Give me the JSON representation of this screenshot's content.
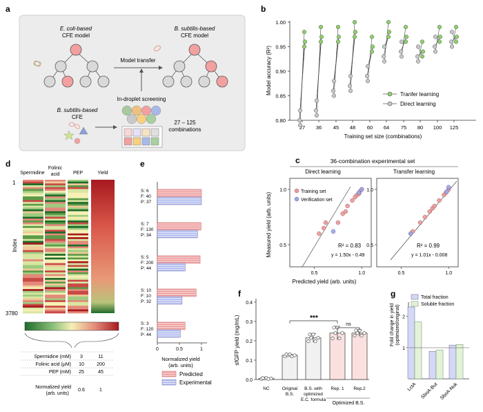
{
  "panel_labels": {
    "a": "a",
    "b": "b",
    "c": "c",
    "d": "d",
    "e": "e",
    "f": "f",
    "g": "g"
  },
  "panel_a": {
    "ecoli_model_line1": "E. coli-based",
    "ecoli_model_line2": "CFE model",
    "bsub_model_line1": "B. subtilis-based",
    "bsub_model_line2": "CFE model",
    "model_transfer": "Model transfer",
    "screening": "In-droplet screening",
    "bsub_cfe_line1": "B. subtilis-based",
    "bsub_cfe_line2": "CFE",
    "combinations_line1": "27 – 125",
    "combinations_line2": "combinations",
    "colors": {
      "box": "#ececec",
      "node_red": "#f2a0a0",
      "node_gray": "#d9d9d9"
    }
  },
  "panel_b": {
    "ylabel": "Model accuracy (R²)",
    "xlabel": "Training set size (combinations)",
    "yticks": [
      "0.80",
      "0.85",
      "0.90",
      "0.95",
      "1.00"
    ],
    "xticks": [
      "27",
      "36",
      "45",
      "48",
      "60",
      "64",
      "75",
      "80",
      "100",
      "125"
    ],
    "legend_transfer": "Tranfer learning",
    "legend_direct": "Direct learning",
    "colors": {
      "transfer": "#8fd16a",
      "direct": "#c8c8c8"
    }
  },
  "panel_c": {
    "title": "36-combination experimental set",
    "left_title": "Direct learning",
    "right_title": "Transfer learning",
    "ylabel": "Measured yield (arb. units)",
    "xlabel": "Predicted yield (arb. units)",
    "legend_training": "Training set",
    "legend_verification": "Verification set",
    "left_r2": "R² = 0.83",
    "left_eq": "y = 1.50x - 0.49",
    "right_r2": "R² = 0.99",
    "right_eq": "y = 1.01x - 0.008",
    "yticks": [
      "0.5",
      "1.0"
    ],
    "xticks": [
      "0.5",
      "1.0"
    ],
    "colors": {
      "training": "#e8989a",
      "verification": "#9aa8e8"
    }
  },
  "panel_d": {
    "col_spermidine": "Spermidine",
    "col_folinic_1": "Folinic",
    "col_folinic_2": "acid",
    "col_pep": "PEP",
    "col_yield": "Yield",
    "index_label": "Index",
    "index_top": "1",
    "index_bottom": "3780",
    "table": [
      {
        "label": "Spermidine (mM)",
        "low": "3",
        "high": "11"
      },
      {
        "label": "Folinic acid (μM)",
        "low": "10",
        "high": "200"
      },
      {
        "label": "PEP (mM)",
        "low": "25",
        "high": "45"
      }
    ],
    "yield_label_1": "Normalized yield",
    "yield_label_2": "(arb. units)",
    "yield_low": "0.6",
    "yield_high": "1"
  },
  "panel_e": {
    "groups": [
      {
        "s": "S: 6",
        "f": "F: 40",
        "p": "P: 37"
      },
      {
        "s": "S: 7",
        "f": "F: 130",
        "p": "P: 34"
      },
      {
        "s": "S: 5",
        "f": "F: 200",
        "p": "P: 44"
      },
      {
        "s": "S: 10",
        "f": "F: 10",
        "p": "P: 32"
      },
      {
        "s": "S: 3",
        "f": "F: 120",
        "p": "P: 44"
      }
    ],
    "xticks": [
      "0",
      "0.5",
      "1"
    ],
    "xlabel_1": "Normalized yield",
    "xlabel_2": "(arb. units)",
    "legend_predicted": "Predicted",
    "legend_experimental": "Experimental"
  },
  "panel_f": {
    "ylabel": "sfGFP yield (mg/mL)",
    "yticks": [
      "0.0",
      "0.1",
      "0.2",
      "0.3",
      "0.4"
    ],
    "categories": [
      {
        "l1": "NC",
        "l2": "",
        "l3": ""
      },
      {
        "l1": "Original",
        "l2": "B.S.",
        "l3": ""
      },
      {
        "l1": "B.S. with",
        "l2": "optimized",
        "l3": "E.C. formula"
      },
      {
        "l1": "Rep. 1",
        "l2": "",
        "l3": ""
      },
      {
        "l1": "Rep.2",
        "l2": "",
        "l3": ""
      }
    ],
    "optimized_label": "Optimized B.S.",
    "sig_star": "***",
    "sig_ns": "ns"
  },
  "panel_g": {
    "ylabel_1": "Fold change in yield",
    "ylabel_2": "(optimized/original)",
    "legend_total": "Total fraction",
    "legend_soluble": "Soluble fraction",
    "yticks": [
      "1",
      "2"
    ],
    "categories": [
      "LctA",
      "SboA-But",
      "SboA-Nuk"
    ]
  },
  "chart_data": [
    {
      "type": "line",
      "title": "",
      "xlabel": "Training set size (combinations)",
      "ylabel": "Model accuracy (R²)",
      "ylim": [
        0.8,
        1.0
      ],
      "categories": [
        "27",
        "36",
        "45",
        "48",
        "60",
        "64",
        "75",
        "80",
        "100",
        "125"
      ],
      "series": [
        {
          "name": "Direct learning",
          "values": [
            0.8,
            0.82,
            0.86,
            0.87,
            0.89,
            0.93,
            0.94,
            0.93,
            0.95,
            0.96
          ]
        },
        {
          "name": "Tranfer learning",
          "values": [
            0.96,
            0.97,
            0.97,
            0.98,
            0.95,
            0.98,
            0.97,
            0.94,
            0.97,
            0.97
          ]
        }
      ]
    },
    {
      "type": "scatter",
      "title": "Direct learning",
      "xlabel": "Predicted yield (arb. units)",
      "ylabel": "Measured yield (arb. units)",
      "fit": "y = 1.50x - 0.49",
      "r2": 0.83,
      "series": [
        {
          "name": "Training set",
          "x": [
            0.55,
            0.6,
            0.62,
            0.75,
            0.8,
            0.83,
            0.85,
            0.9,
            0.93,
            0.95,
            0.97,
            0.98,
            1.0
          ],
          "y": [
            0.6,
            0.65,
            0.7,
            0.7,
            0.78,
            0.8,
            0.85,
            0.9,
            0.93,
            0.95,
            0.96,
            0.98,
            1.0
          ]
        },
        {
          "name": "Verification set",
          "x": [
            0.7,
            0.97,
            1.0
          ],
          "y": [
            0.62,
            0.97,
            1.0
          ]
        }
      ]
    },
    {
      "type": "scatter",
      "title": "Transfer learning",
      "xlabel": "Predicted yield (arb. units)",
      "ylabel": "Measured yield (arb. units)",
      "fit": "y = 1.01x - 0.008",
      "r2": 0.99,
      "series": [
        {
          "name": "Training set",
          "x": [
            0.6,
            0.62,
            0.7,
            0.75,
            0.8,
            0.83,
            0.85,
            0.9,
            0.95,
            0.97,
            1.0
          ],
          "y": [
            0.6,
            0.62,
            0.7,
            0.75,
            0.8,
            0.83,
            0.85,
            0.9,
            0.95,
            0.97,
            1.0
          ]
        },
        {
          "name": "Verification set",
          "x": [
            0.6,
            0.98,
            1.0
          ],
          "y": [
            0.6,
            0.98,
            1.02
          ]
        }
      ]
    },
    {
      "type": "bar",
      "title": "",
      "xlabel": "Normalized yield (arb. units)",
      "categories": [
        "S:6 F:40 P:37",
        "S:7 F:130 P:34",
        "S:5 F:200 P:44",
        "S:10 F:10 P:32",
        "S:3 F:120 P:44"
      ],
      "series": [
        {
          "name": "Predicted",
          "values": [
            1.0,
            0.99,
            0.97,
            0.88,
            0.63
          ]
        },
        {
          "name": "Experimental",
          "values": [
            1.0,
            0.91,
            0.63,
            0.56,
            0.52
          ]
        }
      ]
    },
    {
      "type": "bar",
      "title": "",
      "ylabel": "sfGFP yield (mg/mL)",
      "ylim": [
        0,
        0.4
      ],
      "categories": [
        "NC",
        "Original B.S.",
        "B.S. with optimized E.C. formula",
        "Rep. 1",
        "Rep.2"
      ],
      "values": [
        0.005,
        0.125,
        0.215,
        0.24,
        0.24
      ]
    },
    {
      "type": "bar",
      "title": "",
      "ylabel": "Fold change in yield (optimized/original)",
      "ylim": [
        0,
        2.5
      ],
      "categories": [
        "LctA",
        "SboA-But",
        "SboA-Nuk"
      ],
      "series": [
        {
          "name": "Total fraction",
          "values": [
            2.3,
            0.88,
            1.08
          ]
        },
        {
          "name": "Soluble fraction",
          "values": [
            1.82,
            0.92,
            1.1
          ]
        }
      ]
    }
  ]
}
